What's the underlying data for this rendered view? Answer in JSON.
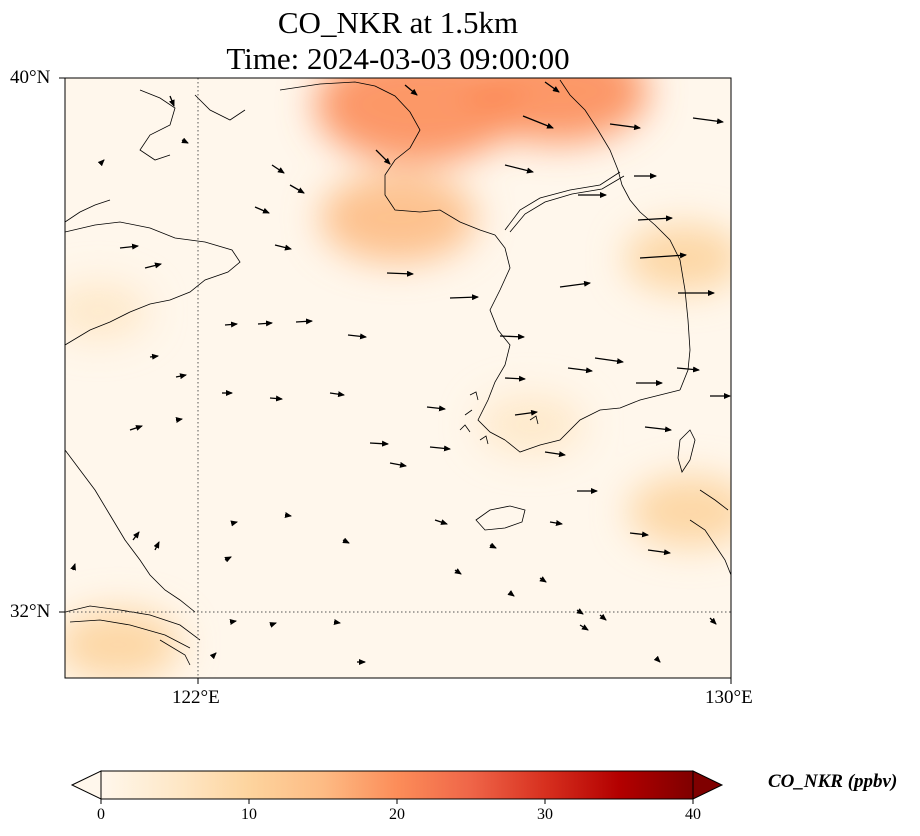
{
  "title": {
    "line1": "CO_NKR at 1.5km",
    "line2": "Time: 2024-03-03 09:00:00"
  },
  "axes": {
    "lat_labels": [
      "40°N",
      "32°N"
    ],
    "lon_labels": [
      "122°E",
      "130°E"
    ],
    "lon_range": [
      120.0,
      130.0
    ],
    "lat_range": [
      31.0,
      40.0
    ],
    "gridlines": "dotted at 122°E and 32°N"
  },
  "colorbar": {
    "label": "CO_NKR (ppbv)",
    "ticks": [
      "0",
      "10",
      "20",
      "30",
      "40"
    ],
    "range": [
      0,
      40
    ],
    "colormap": "OrRd",
    "extend": "both",
    "colors": [
      "#fff7ec",
      "#fee8c8",
      "#fdd49e",
      "#fdbb84",
      "#fc8d59",
      "#ef6548",
      "#d7301f",
      "#b30000",
      "#7f0000"
    ]
  },
  "chart_data": {
    "type": "heatmap",
    "variable": "CO_NKR",
    "units": "ppbv",
    "level": "1.5km",
    "time": "2024-03-03 09:00:00",
    "hotspots": [
      {
        "lon": 125.3,
        "lat": 39.6,
        "value": 22
      },
      {
        "lon": 127.4,
        "lat": 39.8,
        "value": 18
      },
      {
        "lon": 125.0,
        "lat": 37.9,
        "value": 14
      },
      {
        "lon": 120.8,
        "lat": 31.5,
        "value": 9
      },
      {
        "lon": 129.4,
        "lat": 33.5,
        "value": 9
      },
      {
        "lon": 129.3,
        "lat": 37.3,
        "value": 8
      },
      {
        "lon": 120.5,
        "lat": 36.5,
        "value": 5
      },
      {
        "lon": 127.0,
        "lat": 34.8,
        "value": 6
      }
    ],
    "wind_vectors": "black arrows, predominantly westerly to west-northwesterly flow"
  }
}
